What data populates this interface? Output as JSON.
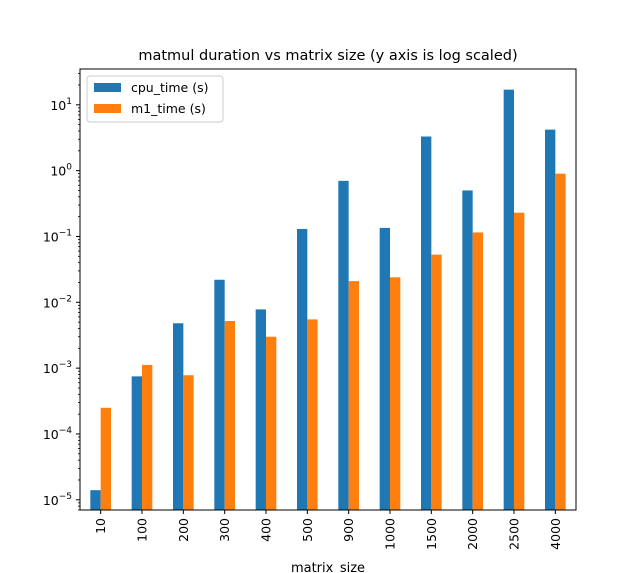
{
  "chart_data": {
    "type": "bar",
    "title": "matmul duration vs matrix size (y axis is log scaled)",
    "xlabel": "matrix_size",
    "ylabel": "",
    "yscale": "log",
    "ylim": [
      7e-06,
      35
    ],
    "grid": false,
    "legend_position": "top-left",
    "categories": [
      "10",
      "100",
      "200",
      "300",
      "400",
      "500",
      "900",
      "1000",
      "1500",
      "2000",
      "2500",
      "4000"
    ],
    "series": [
      {
        "name": "cpu_time (s)",
        "color": "#1f77b4",
        "values": [
          1.4e-05,
          0.00075,
          0.0048,
          0.022,
          0.0078,
          0.13,
          0.7,
          0.135,
          3.3,
          0.5,
          17,
          4.2
        ]
      },
      {
        "name": "m1_time (s)",
        "color": "#ff7f0e",
        "values": [
          0.00025,
          0.00112,
          0.00078,
          0.0052,
          0.003,
          0.0055,
          0.021,
          0.024,
          0.053,
          0.115,
          0.23,
          0.9
        ]
      }
    ],
    "yticks": [
      {
        "value": 1e-05,
        "base": "10",
        "exp": "−5"
      },
      {
        "value": 0.0001,
        "base": "10",
        "exp": "−4"
      },
      {
        "value": 0.001,
        "base": "10",
        "exp": "−3"
      },
      {
        "value": 0.01,
        "base": "10",
        "exp": "−2"
      },
      {
        "value": 0.1,
        "base": "10",
        "exp": "−1"
      },
      {
        "value": 1,
        "base": "10",
        "exp": "0"
      },
      {
        "value": 10,
        "base": "10",
        "exp": "1"
      }
    ]
  }
}
